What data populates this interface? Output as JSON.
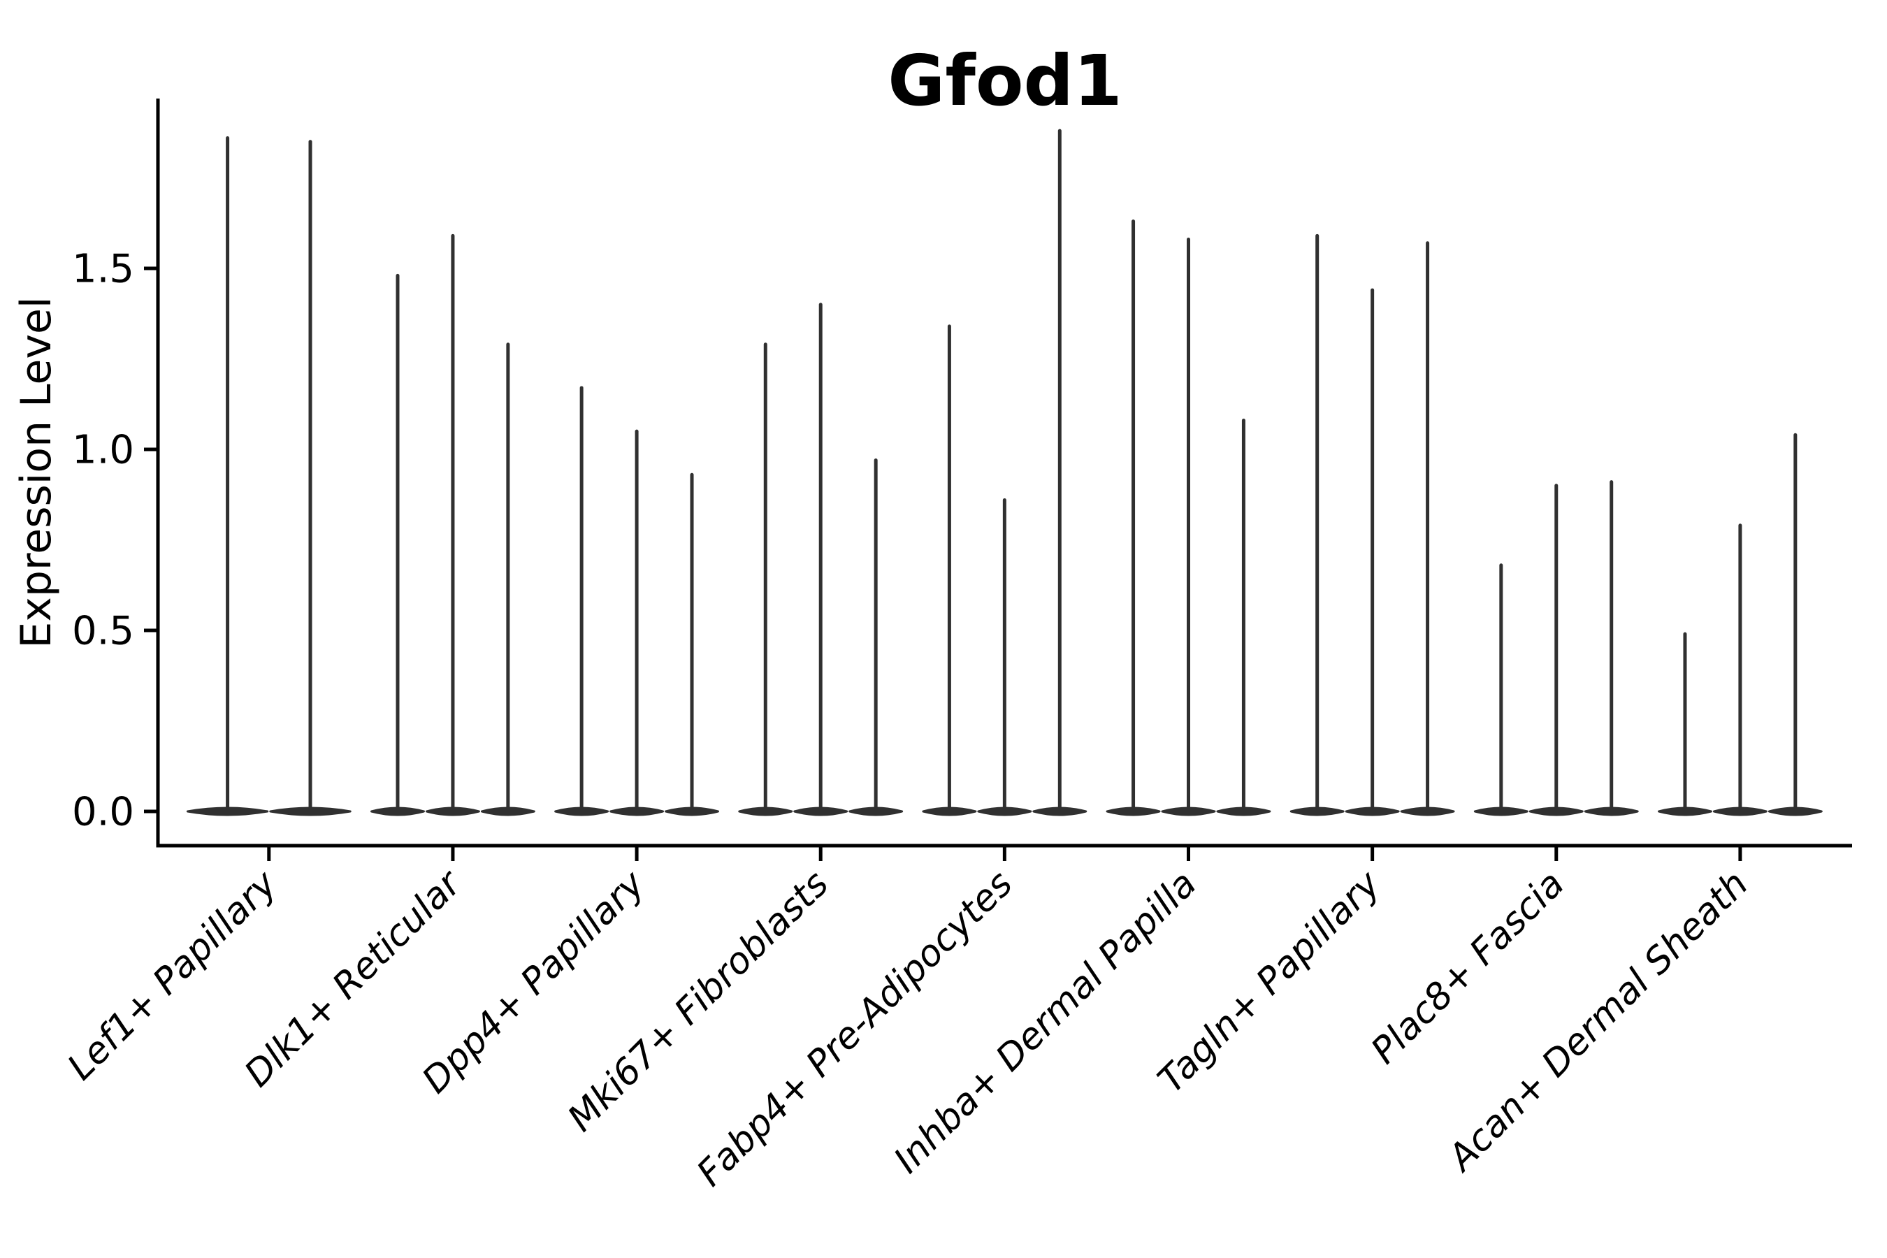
{
  "chart_data": {
    "type": "violin",
    "title": "Gfod1",
    "ylabel": "Expression Level",
    "xlabel": "",
    "ytick_labels": [
      "0.0",
      "0.5",
      "1.0",
      "1.5"
    ],
    "ytick_values": [
      0.0,
      0.5,
      1.0,
      1.5
    ],
    "ylim": [
      -0.095,
      1.97
    ],
    "grid": false,
    "legend": null,
    "categories": [
      "Lef1+ Papillary",
      "Dlk1+ Reticular",
      "Dpp4+ Papillary",
      "Mki67+ Fibroblasts",
      "Fabp4+ Pre-Adipocytes",
      "Inhba+ Dermal Papilla",
      "Tagln+ Papillary",
      "Plac8+ Fascia",
      "Acan+ Dermal Sheath"
    ],
    "groups": [
      {
        "category": "Lef1+ Papillary",
        "violin_min": 0,
        "violin_maxima": [
          1.86,
          1.85
        ]
      },
      {
        "category": "Dlk1+ Reticular",
        "violin_min": 0,
        "violin_maxima": [
          1.48,
          1.59,
          1.29
        ]
      },
      {
        "category": "Dpp4+ Papillary",
        "violin_min": 0,
        "violin_maxima": [
          1.17,
          1.05,
          0.93
        ]
      },
      {
        "category": "Mki67+ Fibroblasts",
        "violin_min": 0,
        "violin_maxima": [
          1.29,
          1.4,
          0.97
        ]
      },
      {
        "category": "Fabp4+ Pre-Adipocytes",
        "violin_min": 0,
        "violin_maxima": [
          1.34,
          0.86,
          1.88
        ]
      },
      {
        "category": "Inhba+ Dermal Papilla",
        "violin_min": 0,
        "violin_maxima": [
          1.63,
          1.58,
          1.08
        ]
      },
      {
        "category": "Tagln+ Papillary",
        "violin_min": 0,
        "violin_maxima": [
          1.59,
          1.44,
          1.57
        ]
      },
      {
        "category": "Plac8+ Fascia",
        "violin_min": 0,
        "violin_maxima": [
          0.68,
          0.9,
          0.91
        ]
      },
      {
        "category": "Acan+ Dermal Sheath",
        "violin_min": 0,
        "violin_maxima": [
          0.49,
          0.79,
          1.04
        ]
      }
    ],
    "colors": {
      "violin": "#303030",
      "axis": "#000000",
      "text": "#000000",
      "background": "#ffffff"
    }
  }
}
